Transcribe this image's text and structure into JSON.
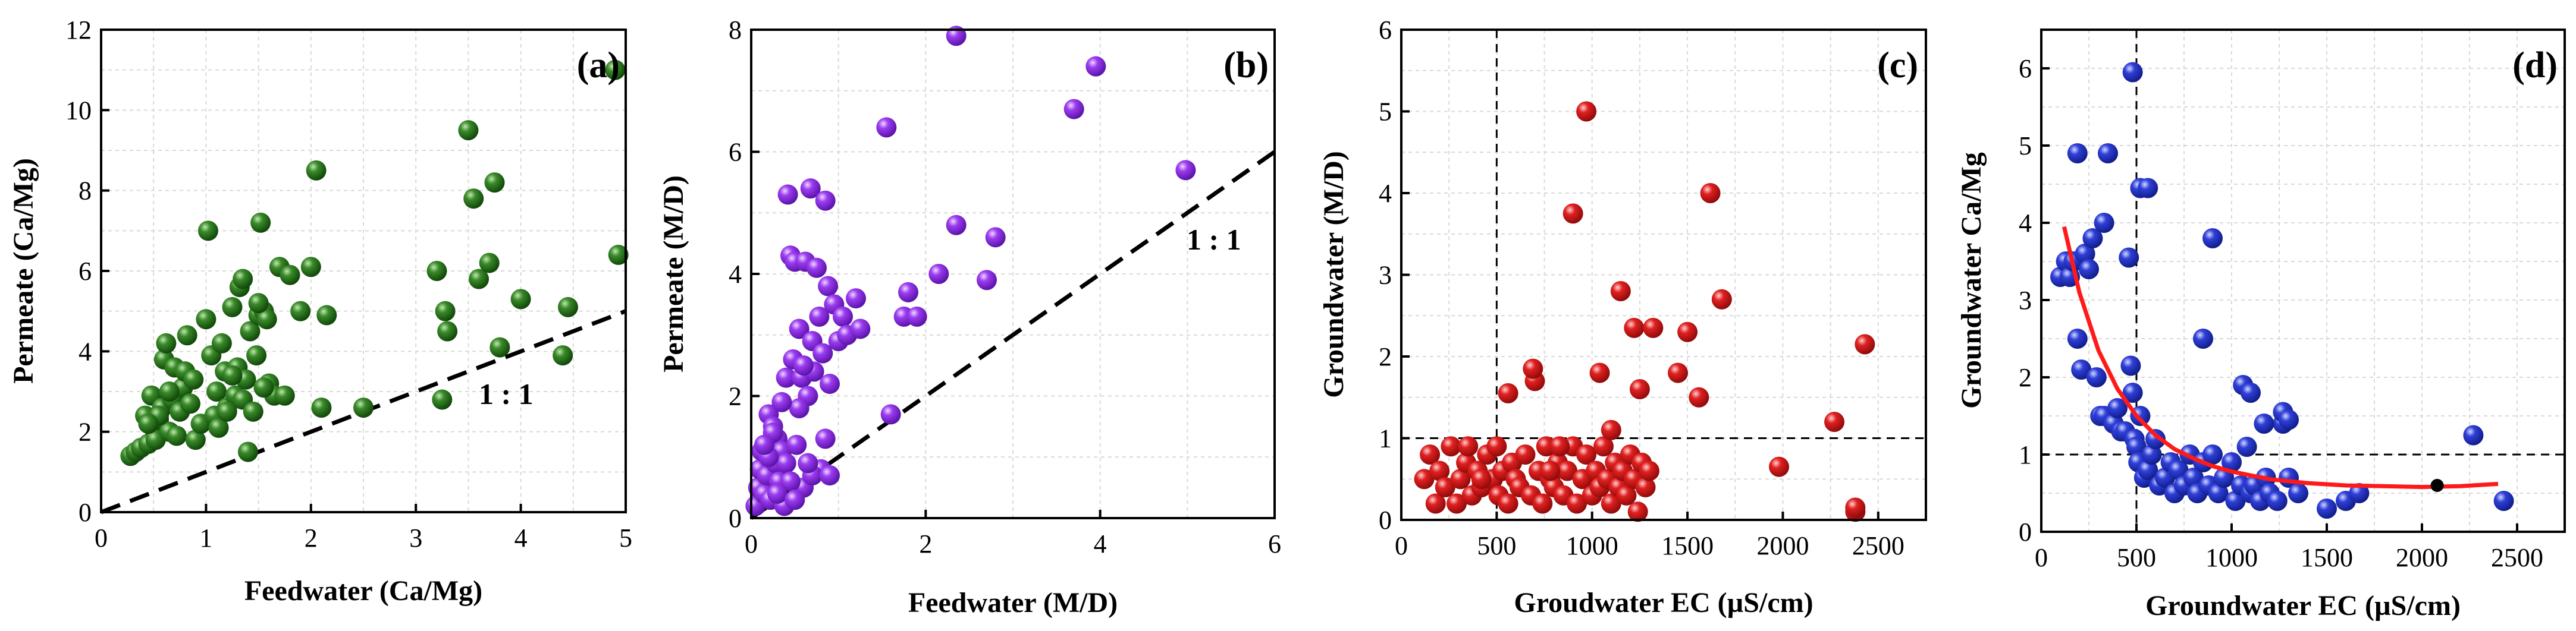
{
  "colors": {
    "panel_a": "#1f6e14",
    "panel_b": "#8a2be2",
    "panel_c": "#d41a1a",
    "panel_d": "#1f2fbf",
    "fit_curve": "#ff1a1a",
    "reference_line": "#000000"
  },
  "chart_data": [
    {
      "type": "scatter",
      "panel_label": "(a)",
      "xlabel": "Feedwater (Ca/Mg)",
      "ylabel": "Permeate (Ca/Mg)",
      "xlim": [
        0,
        5
      ],
      "ylim": [
        0,
        12
      ],
      "xticks": [
        0,
        1,
        2,
        3,
        4,
        5
      ],
      "yticks": [
        0,
        2,
        4,
        6,
        8,
        10,
        12
      ],
      "grid": true,
      "annotation": "1 : 1",
      "reference_lines": [
        {
          "kind": "identity",
          "style": "dashed",
          "from": [
            0,
            0
          ],
          "to": [
            5,
            5
          ]
        }
      ],
      "series": [
        {
          "x": [
            0.28,
            0.33,
            0.38,
            0.42,
            0.45,
            0.48,
            0.5,
            0.52,
            0.55,
            0.58,
            0.6,
            0.62,
            0.65,
            0.68,
            0.7,
            0.72,
            0.75,
            0.78,
            0.8,
            0.82,
            0.85,
            0.88,
            0.9,
            0.95,
            1.0,
            1.02,
            1.05,
            1.08,
            1.1,
            1.12,
            1.15,
            1.18,
            1.2,
            1.25,
            1.28,
            1.3,
            1.32,
            1.35,
            1.38,
            1.4,
            1.42,
            1.45,
            1.48,
            1.5,
            1.52,
            1.55,
            1.58,
            1.6,
            1.65,
            1.7,
            1.75,
            1.8,
            1.9,
            2.0,
            2.05,
            2.1,
            2.15,
            2.5,
            3.2,
            3.25,
            3.28,
            3.3,
            3.5,
            3.55,
            3.6,
            3.7,
            3.75,
            3.8,
            4.0,
            4.4,
            4.45,
            4.9,
            4.93,
            1.5,
            1.2,
            1.35,
            0.65,
            0.55,
            0.45,
            1.55,
            1.25
          ],
          "y": [
            1.4,
            1.5,
            1.6,
            2.4,
            1.7,
            2.9,
            2.1,
            1.8,
            2.3,
            2.6,
            3.8,
            4.2,
            2.0,
            2.8,
            3.6,
            1.9,
            2.5,
            3.1,
            3.5,
            4.4,
            2.7,
            3.3,
            1.8,
            2.2,
            4.8,
            7.0,
            3.9,
            2.4,
            3.0,
            2.1,
            4.2,
            3.5,
            2.6,
            5.1,
            2.9,
            3.6,
            5.6,
            2.8,
            3.3,
            1.5,
            4.5,
            2.5,
            3.9,
            4.9,
            7.2,
            5.0,
            4.8,
            3.2,
            2.9,
            6.1,
            2.9,
            5.9,
            5.0,
            6.1,
            8.5,
            2.6,
            4.9,
            2.6,
            6.0,
            2.8,
            5.0,
            4.5,
            9.5,
            7.8,
            5.8,
            6.2,
            8.2,
            4.1,
            5.3,
            3.9,
            5.1,
            11.0,
            6.4,
            5.2,
            2.5,
            5.8,
            3.0,
            2.4,
            2.2,
            3.1,
            3.4
          ]
        }
      ]
    },
    {
      "type": "scatter",
      "panel_label": "(b)",
      "xlabel": "Feedwater (M/D)",
      "ylabel": "Permeate (M/D)",
      "xlim": [
        0,
        6
      ],
      "ylim": [
        0,
        8
      ],
      "xticks": [
        0,
        2,
        4,
        6
      ],
      "yticks": [
        0,
        2,
        4,
        6,
        8
      ],
      "grid": true,
      "annotation": "1 : 1",
      "reference_lines": [
        {
          "kind": "identity",
          "style": "dashed",
          "from": [
            0,
            0
          ],
          "to": [
            6,
            6
          ]
        }
      ],
      "series": [
        {
          "x": [
            0.05,
            0.08,
            0.1,
            0.12,
            0.15,
            0.18,
            0.2,
            0.22,
            0.25,
            0.28,
            0.3,
            0.32,
            0.35,
            0.38,
            0.4,
            0.42,
            0.45,
            0.48,
            0.5,
            0.52,
            0.55,
            0.58,
            0.6,
            0.62,
            0.65,
            0.68,
            0.7,
            0.72,
            0.75,
            0.78,
            0.8,
            0.82,
            0.85,
            0.88,
            0.9,
            0.95,
            1.0,
            1.05,
            1.1,
            1.2,
            1.25,
            1.55,
            1.6,
            1.75,
            1.8,
            1.9,
            2.15,
            2.35,
            2.35,
            2.7,
            2.8,
            3.7,
            3.95,
            4.98,
            0.4,
            0.45,
            0.3,
            0.25,
            0.7,
            0.55,
            0.6,
            0.35,
            0.2,
            0.15,
            0.5,
            0.65,
            0.85,
            0.9
          ],
          "y": [
            0.2,
            0.5,
            0.8,
            1.1,
            0.4,
            0.7,
            1.7,
            0.3,
            1.5,
            0.9,
            1.3,
            0.6,
            1.1,
            0.2,
            2.3,
            5.3,
            4.3,
            2.6,
            4.2,
            1.2,
            3.1,
            2.3,
            0.5,
            4.2,
            2.0,
            5.4,
            2.9,
            2.4,
            4.1,
            3.3,
            0.8,
            2.7,
            5.2,
            3.8,
            2.2,
            3.5,
            2.9,
            3.3,
            3.0,
            3.6,
            3.1,
            6.4,
            1.7,
            3.3,
            3.7,
            3.3,
            4.0,
            4.8,
            7.9,
            3.9,
            4.6,
            6.7,
            7.4,
            5.7,
            0.9,
            0.6,
            0.4,
            1.4,
            0.7,
            1.8,
            2.5,
            1.9,
            1.0,
            1.2,
            0.3,
            0.9,
            1.3,
            0.7
          ]
        }
      ]
    },
    {
      "type": "scatter",
      "panel_label": "(c)",
      "xlabel": "Groudwater EC (µS/cm)",
      "ylabel": "Groundwater (M/D)",
      "xlim": [
        0,
        2750
      ],
      "ylim": [
        0,
        6
      ],
      "xticks": [
        0,
        500,
        1000,
        1500,
        2000,
        2500
      ],
      "yticks": [
        0,
        1,
        2,
        3,
        4,
        5,
        6
      ],
      "grid": true,
      "reference_lines": [
        {
          "kind": "vertical",
          "style": "dashed",
          "value": 500
        },
        {
          "kind": "horizontal",
          "style": "dashed",
          "value": 1
        }
      ],
      "series": [
        {
          "x": [
            120,
            150,
            180,
            200,
            230,
            260,
            290,
            310,
            340,
            370,
            400,
            420,
            450,
            480,
            500,
            510,
            530,
            560,
            580,
            600,
            620,
            650,
            680,
            700,
            720,
            740,
            760,
            780,
            800,
            820,
            850,
            870,
            900,
            920,
            950,
            970,
            1000,
            1020,
            1040,
            1060,
            1080,
            1100,
            1120,
            1140,
            1160,
            1180,
            1200,
            1220,
            1240,
            1260,
            1280,
            1300,
            1450,
            1500,
            1560,
            1620,
            1680,
            1980,
            2270,
            2380,
            2430,
            560,
            690,
            900,
            970,
            1150,
            1250,
            1220,
            1320,
            2380,
            350,
            420,
            780,
            830,
            1040,
            1100
          ],
          "y": [
            0.5,
            0.8,
            0.2,
            0.6,
            0.4,
            0.9,
            0.2,
            0.5,
            0.7,
            0.3,
            0.6,
            0.4,
            0.8,
            0.5,
            0.9,
            0.3,
            0.6,
            0.2,
            0.7,
            0.5,
            0.4,
            0.8,
            0.3,
            1.7,
            0.6,
            0.2,
            0.9,
            0.5,
            0.4,
            0.7,
            0.3,
            0.6,
            0.9,
            0.2,
            0.5,
            0.8,
            0.3,
            0.6,
            0.4,
            0.9,
            0.5,
            0.2,
            0.7,
            0.4,
            0.6,
            0.3,
            0.8,
            0.5,
            0.1,
            0.7,
            0.4,
            0.6,
            1.8,
            2.3,
            1.5,
            4.0,
            2.7,
            0.65,
            1.2,
            0.1,
            2.15,
            1.55,
            1.85,
            3.75,
            5.0,
            2.8,
            1.6,
            2.35,
            2.35,
            0.15,
            0.9,
            0.5,
            0.6,
            0.9,
            1.8,
            1.1
          ]
        }
      ]
    },
    {
      "type": "scatter",
      "panel_label": "(d)",
      "xlabel": "Groundwater EC (µS/cm)",
      "ylabel": "Groundwater Ca/Mg",
      "xlim": [
        0,
        2750
      ],
      "ylim": [
        0,
        6.5
      ],
      "xticks": [
        0,
        500,
        1000,
        1500,
        2000,
        2500
      ],
      "yticks": [
        0,
        1,
        2,
        3,
        4,
        5,
        6
      ],
      "grid": true,
      "reference_lines": [
        {
          "kind": "vertical",
          "style": "dashed",
          "value": 500
        },
        {
          "kind": "horizontal",
          "style": "dashed",
          "value": 1
        }
      ],
      "fit_curve": {
        "x": [
          120,
          200,
          300,
          400,
          500,
          600,
          700,
          800,
          900,
          1000,
          1200,
          1400,
          1600,
          1800,
          2000,
          2200,
          2400
        ],
        "y": [
          3.95,
          3.1,
          2.35,
          1.85,
          1.5,
          1.25,
          1.07,
          0.95,
          0.85,
          0.78,
          0.68,
          0.63,
          0.6,
          0.59,
          0.58,
          0.59,
          0.62
        ]
      },
      "highlight_point": {
        "x": 2080,
        "y": 0.6
      },
      "series": [
        {
          "x": [
            100,
            130,
            150,
            170,
            190,
            210,
            230,
            250,
            270,
            290,
            310,
            330,
            350,
            380,
            400,
            420,
            440,
            460,
            470,
            480,
            490,
            500,
            510,
            520,
            540,
            560,
            580,
            600,
            620,
            650,
            680,
            700,
            720,
            750,
            780,
            800,
            820,
            850,
            880,
            900,
            930,
            960,
            1000,
            1020,
            1050,
            1080,
            1100,
            1120,
            1150,
            1180,
            1200,
            1240,
            1270,
            1300,
            1350,
            1500,
            1600,
            1670,
            2270,
            2430,
            480,
            520,
            560,
            190,
            330,
            850,
            900,
            1060,
            1100,
            1170,
            1270,
            1300
          ],
          "y": [
            3.3,
            3.5,
            3.3,
            3.5,
            2.5,
            2.1,
            3.6,
            3.4,
            3.8,
            2.0,
            1.5,
            1.5,
            4.9,
            1.4,
            1.6,
            1.3,
            1.3,
            3.55,
            2.15,
            1.8,
            1.2,
            1.1,
            0.9,
            1.5,
            0.7,
            0.8,
            1.0,
            1.2,
            0.6,
            0.7,
            0.9,
            0.5,
            0.8,
            0.6,
            1.0,
            0.7,
            0.5,
            0.9,
            0.6,
            1.0,
            0.5,
            0.7,
            0.9,
            0.4,
            0.6,
            1.1,
            0.5,
            0.6,
            0.4,
            0.7,
            0.5,
            0.4,
            1.4,
            0.7,
            0.5,
            0.3,
            0.4,
            0.5,
            1.25,
            0.4,
            5.95,
            4.45,
            4.45,
            4.9,
            4.0,
            2.5,
            3.8,
            1.9,
            1.8,
            1.4,
            1.55,
            1.45
          ]
        }
      ]
    }
  ]
}
